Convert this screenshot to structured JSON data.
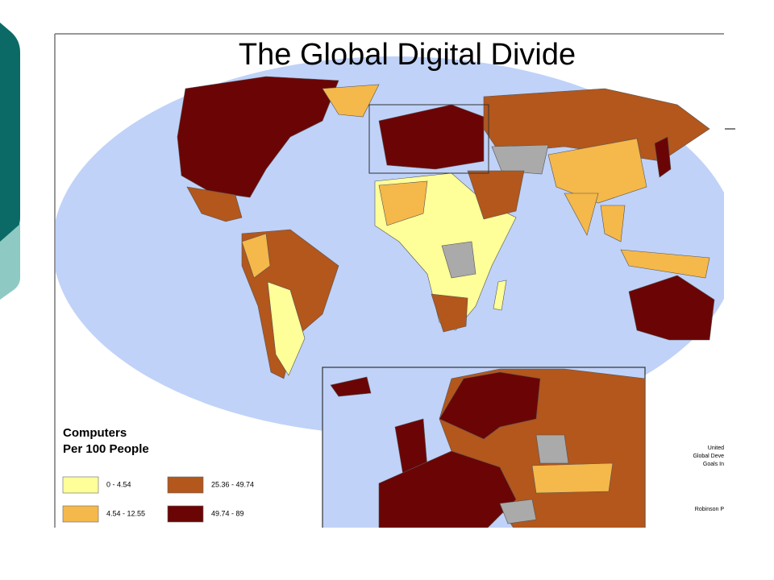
{
  "title": "The Global Digital Divide",
  "legend": {
    "title": [
      "Computers",
      "Per 100 People"
    ],
    "items": [
      {
        "label": "0 - 4.54",
        "color": "#ffff99"
      },
      {
        "label": "4.54 - 12.55",
        "color": "#f5b84a"
      },
      {
        "label": "25.36 - 49.74",
        "color": "#b3571c"
      },
      {
        "label": "49.74 - 89",
        "color": "#6b0505"
      }
    ]
  },
  "source": [
    "United",
    "Global Deve",
    "Goals In",
    "Robinson P"
  ]
}
